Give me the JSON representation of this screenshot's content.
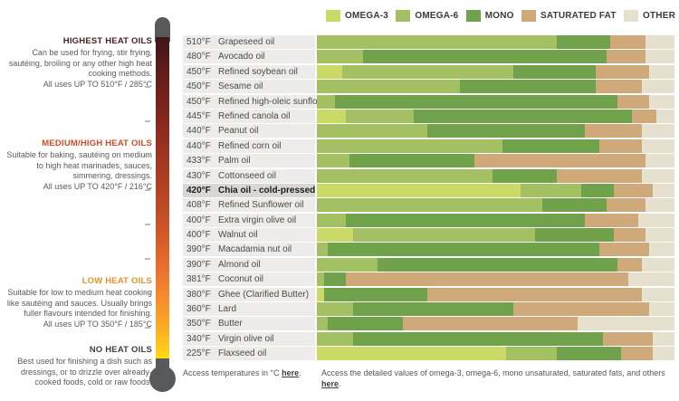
{
  "legend": {
    "items": [
      {
        "label": "OMEGA-3",
        "color": "#cbd967"
      },
      {
        "label": "OMEGA-6",
        "color": "#a3c063"
      },
      {
        "label": "MONO",
        "color": "#70a14b"
      },
      {
        "label": "SATURATED FAT",
        "color": "#cfa97a"
      },
      {
        "label": "OTHER",
        "color": "#e6e0cf"
      }
    ]
  },
  "sidebar": {
    "sections": [
      {
        "title": "HIGHEST HEAT OILS",
        "title_color": "#4a2023",
        "body": "Can be used for frying, stir frying, sautéing, broiling or any other high heat cooking methods.",
        "uses": "All uses UP TO 510°F / 285°C"
      },
      {
        "title": "MEDIUM/HIGH HEAT OILS",
        "title_color": "#cf4a28",
        "body": "Suitable for baking, sautéing on medium to high heat marinades, sauces, simmering, dressings.",
        "uses": "All uses UP TO 420°F / 216°C"
      },
      {
        "title": "LOW HEAT OILS",
        "title_color": "#ea9125",
        "body": "Suitable for low to medium heat cooking like sautéing and sauces. Usually brings fuller flavours intended for finishing.",
        "uses": "All uses UP TO 350°F / 185°C"
      },
      {
        "title": "NO HEAT OILS",
        "title_color": "#404040",
        "body": "Best used for finishing a dish such as dressings, or to drizzle over already-cooked foods, cold or raw foods.",
        "uses": ""
      }
    ]
  },
  "chart_data": {
    "type": "bar",
    "stacked": true,
    "orientation": "horizontal",
    "unit": "percent of fat composition (bars sum to 100%)",
    "series_names": [
      "OMEGA-3",
      "OMEGA-6",
      "MONO",
      "SATURATED FAT",
      "OTHER"
    ],
    "series_colors": [
      "#cbd967",
      "#a3c063",
      "#70a14b",
      "#cfa97a",
      "#e6e0cf"
    ],
    "rows": [
      {
        "temp": "510°F",
        "name": "Grapeseed oil",
        "values": [
          0,
          67,
          15,
          10,
          8
        ],
        "highlight": false
      },
      {
        "temp": "480°F",
        "name": "Avocado oil",
        "values": [
          0,
          13,
          68,
          11,
          8
        ],
        "highlight": false
      },
      {
        "temp": "450°F",
        "name": "Refined soybean oil",
        "values": [
          7,
          48,
          23,
          15,
          7
        ],
        "highlight": false
      },
      {
        "temp": "450°F",
        "name": "Sesame oil",
        "values": [
          0,
          40,
          38,
          13,
          9
        ],
        "highlight": false
      },
      {
        "temp": "450°F",
        "name": "Refined high-oleic sunflower oil",
        "values": [
          0,
          5,
          79,
          9,
          7
        ],
        "highlight": false
      },
      {
        "temp": "445°F",
        "name": "Refined canola oil",
        "values": [
          8,
          19,
          61,
          7,
          5
        ],
        "highlight": false
      },
      {
        "temp": "440°F",
        "name": "Peanut oil",
        "values": [
          0,
          31,
          44,
          16,
          9
        ],
        "highlight": false
      },
      {
        "temp": "440°F",
        "name": "Refined corn oil",
        "values": [
          0,
          52,
          27,
          12,
          9
        ],
        "highlight": false
      },
      {
        "temp": "433°F",
        "name": "Palm oil",
        "values": [
          0,
          9,
          35,
          48,
          8
        ],
        "highlight": false
      },
      {
        "temp": "430°F",
        "name": "Cottonseed oil",
        "values": [
          0,
          49,
          18,
          24,
          9
        ],
        "highlight": false
      },
      {
        "temp": "420°F",
        "name": "Chia oil - cold-pressed",
        "values": [
          57,
          17,
          9,
          11,
          6
        ],
        "highlight": true
      },
      {
        "temp": "408°F",
        "name": "Refined Sunflower oil",
        "values": [
          0,
          63,
          18,
          11,
          8
        ],
        "highlight": false
      },
      {
        "temp": "400°F",
        "name": "Extra virgin olive oil",
        "values": [
          0,
          8,
          67,
          15,
          10
        ],
        "highlight": false
      },
      {
        "temp": "400°F",
        "name": "Walnut oil",
        "values": [
          10,
          51,
          22,
          9,
          8
        ],
        "highlight": false
      },
      {
        "temp": "390°F",
        "name": "Macadamia nut oil",
        "values": [
          0,
          3,
          76,
          14,
          7
        ],
        "highlight": false
      },
      {
        "temp": "390°F",
        "name": "Almond oil",
        "values": [
          0,
          17,
          67,
          7,
          9
        ],
        "highlight": false
      },
      {
        "temp": "381°F",
        "name": "Coconut oil",
        "values": [
          0,
          2,
          6,
          79,
          13
        ],
        "highlight": false
      },
      {
        "temp": "380°F",
        "name": "Ghee (Clarified Butter)",
        "values": [
          2,
          0,
          29,
          60,
          9
        ],
        "highlight": false
      },
      {
        "temp": "360°F",
        "name": "Lard",
        "values": [
          0,
          10,
          45,
          38,
          7
        ],
        "highlight": false
      },
      {
        "temp": "350°F",
        "name": "Butter",
        "values": [
          0,
          3,
          21,
          49,
          27
        ],
        "highlight": false
      },
      {
        "temp": "340°F",
        "name": "Virgin olive oil",
        "values": [
          0,
          10,
          70,
          14,
          6
        ],
        "highlight": false
      },
      {
        "temp": "225°F",
        "name": "Flaxseed oil",
        "values": [
          53,
          14,
          18,
          9,
          6
        ],
        "highlight": false
      }
    ]
  },
  "footer": {
    "left": {
      "text": "Access temperatures in °C ",
      "link": "here",
      "suffix": "."
    },
    "right": {
      "text": "Access the detailed values of omega-3, omega-6, mono unsaturated, saturated fats, and others ",
      "link": "here",
      "suffix": "."
    }
  }
}
